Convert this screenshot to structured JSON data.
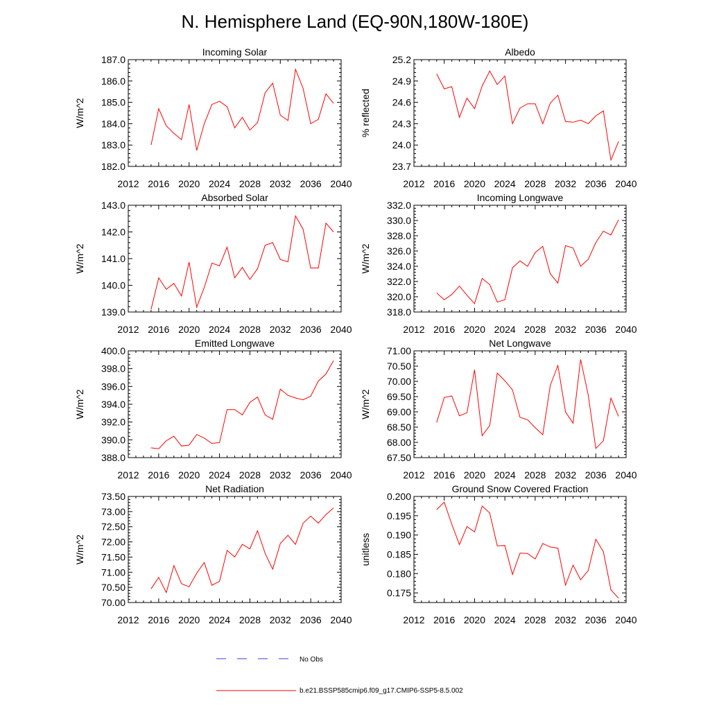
{
  "figure_title": "N. Hemisphere Land (EQ-90N,180W-180E)",
  "colors": {
    "model": "#ff0000",
    "obs": "#3b3bd6"
  },
  "legend": {
    "obs_label": "No Obs",
    "model_label": "b.e21.BSSP585cmip6.f09_g17.CMIP6-SSP5-8.5.002"
  },
  "chart_data": [
    {
      "type": "line",
      "title": "Incoming Solar",
      "ylabel": "W/m^2",
      "xlim": [
        2012,
        2040
      ],
      "xticks": [
        2012,
        2016,
        2020,
        2024,
        2028,
        2032,
        2036,
        2040
      ],
      "ylim": [
        182.0,
        187.0
      ],
      "yticks": [
        "182.0",
        "183.0",
        "184.0",
        "185.0",
        "186.0",
        "187.0"
      ],
      "x": [
        2015,
        2016,
        2017,
        2018,
        2019,
        2020,
        2021,
        2022,
        2023,
        2024,
        2025,
        2026,
        2027,
        2028,
        2029,
        2030,
        2031,
        2032,
        2033,
        2034,
        2035,
        2036,
        2037,
        2038,
        2039
      ],
      "values": [
        183.0,
        184.7,
        183.9,
        183.55,
        183.25,
        184.9,
        182.75,
        184.0,
        184.9,
        185.05,
        184.8,
        183.8,
        184.3,
        183.7,
        184.05,
        185.45,
        185.9,
        184.4,
        184.15,
        186.55,
        185.65,
        184.0,
        184.2,
        185.4,
        184.95
      ]
    },
    {
      "type": "line",
      "title": "Albedo",
      "ylabel": "% reflected",
      "xlim": [
        2012,
        2040
      ],
      "xticks": [
        2012,
        2016,
        2020,
        2024,
        2028,
        2032,
        2036,
        2040
      ],
      "ylim": [
        23.7,
        25.2
      ],
      "yticks": [
        "23.7",
        "24.0",
        "24.3",
        "24.6",
        "24.9",
        "25.2"
      ],
      "x": [
        2015,
        2016,
        2017,
        2018,
        2019,
        2020,
        2021,
        2022,
        2023,
        2024,
        2025,
        2026,
        2027,
        2028,
        2029,
        2030,
        2031,
        2032,
        2033,
        2034,
        2035,
        2036,
        2037,
        2038,
        2039
      ],
      "values": [
        25.0,
        24.79,
        24.82,
        24.39,
        24.66,
        24.51,
        24.83,
        25.04,
        24.85,
        24.97,
        24.3,
        24.52,
        24.58,
        24.58,
        24.3,
        24.59,
        24.7,
        24.33,
        24.32,
        24.35,
        24.3,
        24.41,
        24.48,
        23.79,
        24.05
      ]
    },
    {
      "type": "line",
      "title": "Absorbed Solar",
      "ylabel": "W/m^2",
      "xlim": [
        2012,
        2040
      ],
      "xticks": [
        2012,
        2016,
        2020,
        2024,
        2028,
        2032,
        2036,
        2040
      ],
      "ylim": [
        139.0,
        143.0
      ],
      "yticks": [
        "139.0",
        "140.0",
        "141.0",
        "142.0",
        "143.0"
      ],
      "x": [
        2015,
        2016,
        2017,
        2018,
        2019,
        2020,
        2021,
        2022,
        2023,
        2024,
        2025,
        2026,
        2027,
        2028,
        2029,
        2030,
        2031,
        2032,
        2033,
        2034,
        2035,
        2036,
        2037,
        2038,
        2039
      ],
      "values": [
        139.1,
        140.28,
        139.85,
        140.07,
        139.6,
        140.87,
        139.18,
        139.92,
        140.83,
        140.73,
        141.43,
        140.28,
        140.67,
        140.22,
        140.62,
        141.5,
        141.6,
        140.97,
        140.88,
        142.6,
        142.1,
        140.65,
        140.65,
        142.33,
        142.0
      ]
    },
    {
      "type": "line",
      "title": "Incoming Longwave",
      "ylabel": "W/m^2",
      "xlim": [
        2012,
        2040
      ],
      "xticks": [
        2012,
        2016,
        2020,
        2024,
        2028,
        2032,
        2036,
        2040
      ],
      "ylim": [
        318.0,
        332.0
      ],
      "yticks": [
        "318.0",
        "320.0",
        "322.0",
        "324.0",
        "326.0",
        "328.0",
        "330.0",
        "332.0"
      ],
      "x": [
        2015,
        2016,
        2017,
        2018,
        2019,
        2020,
        2021,
        2022,
        2023,
        2024,
        2025,
        2026,
        2027,
        2028,
        2029,
        2030,
        2031,
        2032,
        2033,
        2034,
        2035,
        2036,
        2037,
        2038,
        2039
      ],
      "values": [
        320.5,
        319.6,
        320.3,
        321.4,
        320.2,
        319.1,
        322.4,
        321.6,
        319.3,
        319.6,
        323.8,
        324.7,
        324.0,
        325.8,
        326.6,
        323.0,
        321.8,
        326.7,
        326.4,
        324.0,
        324.9,
        327.1,
        328.6,
        328.1,
        330.1
      ]
    },
    {
      "type": "line",
      "title": "Emitted Longwave",
      "ylabel": "W/m^2",
      "xlim": [
        2012,
        2040
      ],
      "xticks": [
        2012,
        2016,
        2020,
        2024,
        2028,
        2032,
        2036,
        2040
      ],
      "ylim": [
        388.0,
        400.0
      ],
      "yticks": [
        "388.0",
        "390.0",
        "392.0",
        "394.0",
        "396.0",
        "398.0",
        "400.0"
      ],
      "x": [
        2015,
        2016,
        2017,
        2018,
        2019,
        2020,
        2021,
        2022,
        2023,
        2024,
        2025,
        2026,
        2027,
        2028,
        2029,
        2030,
        2031,
        2032,
        2033,
        2034,
        2035,
        2036,
        2037,
        2038,
        2039
      ],
      "values": [
        389.1,
        389.0,
        389.9,
        390.4,
        389.3,
        389.4,
        390.6,
        390.2,
        389.6,
        389.7,
        393.4,
        393.4,
        392.8,
        394.2,
        394.8,
        392.8,
        392.3,
        395.7,
        395.0,
        394.7,
        394.5,
        394.9,
        396.6,
        397.4,
        398.9
      ]
    },
    {
      "type": "line",
      "title": "Net Longwave",
      "ylabel": "W/m^2",
      "xlim": [
        2012,
        2040
      ],
      "xticks": [
        2012,
        2016,
        2020,
        2024,
        2028,
        2032,
        2036,
        2040
      ],
      "ylim": [
        67.5,
        71.0
      ],
      "yticks": [
        "67.50",
        "68.00",
        "68.50",
        "69.00",
        "69.50",
        "70.00",
        "70.50",
        "71.00"
      ],
      "x": [
        2015,
        2016,
        2017,
        2018,
        2019,
        2020,
        2021,
        2022,
        2023,
        2024,
        2025,
        2026,
        2027,
        2028,
        2029,
        2030,
        2031,
        2032,
        2033,
        2034,
        2035,
        2036,
        2037,
        2038,
        2039
      ],
      "values": [
        68.65,
        69.47,
        69.52,
        68.87,
        68.97,
        70.38,
        68.22,
        68.55,
        70.27,
        70.02,
        69.72,
        68.82,
        68.74,
        68.48,
        68.25,
        69.87,
        70.52,
        69.0,
        68.63,
        70.72,
        69.55,
        67.8,
        68.05,
        69.45,
        68.85
      ]
    },
    {
      "type": "line",
      "title": "Net Radiation",
      "ylabel": "W/m^2",
      "xlim": [
        2012,
        2040
      ],
      "xticks": [
        2012,
        2016,
        2020,
        2024,
        2028,
        2032,
        2036,
        2040
      ],
      "ylim": [
        70.0,
        73.5
      ],
      "yticks": [
        "70.00",
        "70.50",
        "71.00",
        "71.50",
        "72.00",
        "72.50",
        "73.00",
        "73.50"
      ],
      "x": [
        2015,
        2016,
        2017,
        2018,
        2019,
        2020,
        2021,
        2022,
        2023,
        2024,
        2025,
        2026,
        2027,
        2028,
        2029,
        2030,
        2031,
        2032,
        2033,
        2034,
        2035,
        2036,
        2037,
        2038,
        2039
      ],
      "values": [
        70.45,
        70.83,
        70.33,
        71.22,
        70.62,
        70.52,
        70.97,
        71.32,
        70.57,
        70.7,
        71.72,
        71.5,
        71.92,
        71.77,
        72.37,
        71.62,
        71.1,
        71.95,
        72.22,
        71.92,
        72.62,
        72.85,
        72.62,
        72.9,
        73.12
      ]
    },
    {
      "type": "line",
      "title": "Ground Snow Covered Fraction",
      "ylabel": "unitless",
      "xlim": [
        2012,
        2040
      ],
      "xticks": [
        2012,
        2016,
        2020,
        2024,
        2028,
        2032,
        2036,
        2040
      ],
      "ylim": [
        0.1725,
        0.2
      ],
      "yticks": [
        "0.175",
        "0.180",
        "0.185",
        "0.190",
        "0.195",
        "0.200"
      ],
      "x": [
        2015,
        2016,
        2017,
        2018,
        2019,
        2020,
        2021,
        2022,
        2023,
        2024,
        2025,
        2026,
        2027,
        2028,
        2029,
        2030,
        2031,
        2032,
        2033,
        2034,
        2035,
        2036,
        2037,
        2038,
        2039
      ],
      "values": [
        0.1966,
        0.1985,
        0.1928,
        0.1875,
        0.1922,
        0.1908,
        0.1975,
        0.1957,
        0.1872,
        0.1873,
        0.1798,
        0.1853,
        0.1852,
        0.1838,
        0.1878,
        0.1869,
        0.1866,
        0.177,
        0.1822,
        0.1784,
        0.1808,
        0.1889,
        0.1857,
        0.1758,
        0.1736
      ]
    }
  ]
}
